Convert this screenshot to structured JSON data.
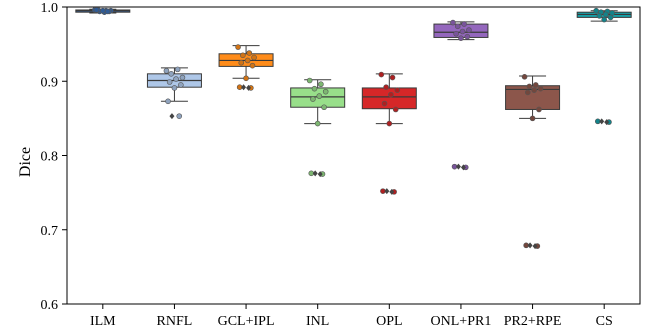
{
  "chart_data": {
    "type": "box",
    "title": "",
    "xlabel": "",
    "ylabel": "Dice",
    "ylim": [
      0.6,
      1.0
    ],
    "yticks": [
      0.6,
      0.7,
      0.8,
      0.9,
      1.0
    ],
    "ytick_labels": [
      "0.6",
      "0.7",
      "0.8",
      "0.9",
      "1.0"
    ],
    "grid": false,
    "legend": "none",
    "categories": [
      "ILM",
      "RNFL",
      "GCL+IPL",
      "INL",
      "OPL",
      "ONL+PR1",
      "PR2+RPE",
      "CS"
    ],
    "colors": [
      "#3b6fb6",
      "#aec7e8",
      "#ff8c1a",
      "#98df8a",
      "#d62728",
      "#9467bd",
      "#8c564b",
      "#17a0a8"
    ],
    "boxes": [
      {
        "q1": 0.993,
        "median": 0.995,
        "q3": 0.996,
        "whisker_low": 0.992,
        "whisker_high": 0.997,
        "points": [
          0.996,
          0.995,
          0.994,
          0.995,
          0.993,
          0.996,
          0.994,
          0.995,
          0.996,
          0.994
        ],
        "outliers": []
      },
      {
        "q1": 0.892,
        "median": 0.901,
        "q3": 0.91,
        "whisker_low": 0.873,
        "whisker_high": 0.918,
        "points": [
          0.914,
          0.916,
          0.91,
          0.905,
          0.903,
          0.899,
          0.895,
          0.891,
          0.873,
          0.853
        ],
        "outliers": [
          0.853
        ]
      },
      {
        "q1": 0.92,
        "median": 0.928,
        "q3": 0.937,
        "whisker_low": 0.904,
        "whisker_high": 0.948,
        "points": [
          0.946,
          0.938,
          0.935,
          0.932,
          0.928,
          0.925,
          0.921,
          0.904,
          0.892,
          0.891
        ],
        "outliers": [
          0.892,
          0.891
        ]
      },
      {
        "q1": 0.865,
        "median": 0.879,
        "q3": 0.891,
        "whisker_low": 0.843,
        "whisker_high": 0.902,
        "points": [
          0.901,
          0.896,
          0.89,
          0.886,
          0.88,
          0.876,
          0.865,
          0.843,
          0.776,
          0.775
        ],
        "outliers": [
          0.776,
          0.775
        ]
      },
      {
        "q1": 0.863,
        "median": 0.879,
        "q3": 0.891,
        "whisker_low": 0.843,
        "whisker_high": 0.91,
        "points": [
          0.909,
          0.905,
          0.892,
          0.888,
          0.882,
          0.87,
          0.862,
          0.843,
          0.752,
          0.751
        ],
        "outliers": [
          0.752,
          0.751
        ]
      },
      {
        "q1": 0.959,
        "median": 0.966,
        "q3": 0.977,
        "whisker_low": 0.956,
        "whisker_high": 0.98,
        "points": [
          0.979,
          0.977,
          0.974,
          0.969,
          0.967,
          0.964,
          0.96,
          0.958,
          0.785,
          0.784
        ],
        "outliers": [
          0.785,
          0.784
        ]
      },
      {
        "q1": 0.862,
        "median": 0.889,
        "q3": 0.894,
        "whisker_low": 0.85,
        "whisker_high": 0.907,
        "points": [
          0.906,
          0.895,
          0.893,
          0.89,
          0.888,
          0.885,
          0.862,
          0.85,
          0.679,
          0.678
        ],
        "outliers": [
          0.679,
          0.678
        ]
      },
      {
        "q1": 0.986,
        "median": 0.99,
        "q3": 0.993,
        "whisker_low": 0.981,
        "whisker_high": 0.995,
        "points": [
          0.995,
          0.994,
          0.993,
          0.992,
          0.99,
          0.988,
          0.986,
          0.983,
          0.846,
          0.845
        ],
        "outliers": [
          0.846,
          0.845
        ]
      }
    ]
  }
}
